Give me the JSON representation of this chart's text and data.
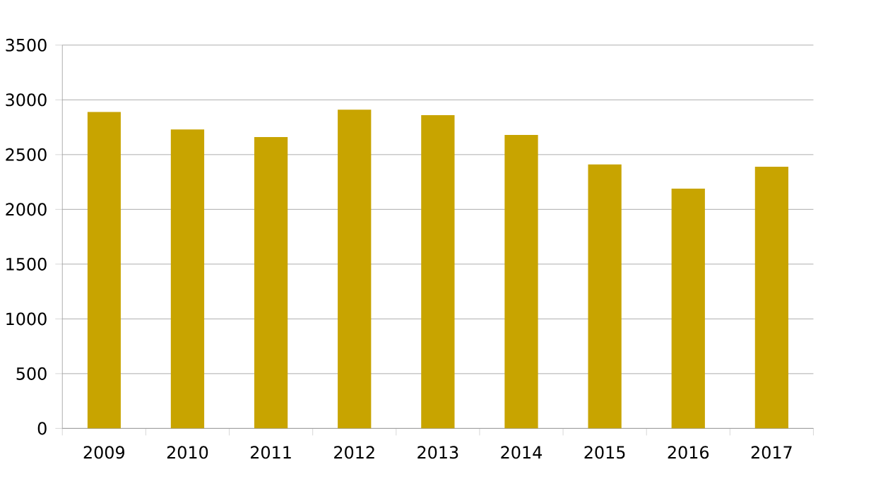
{
  "chart_data": {
    "type": "bar",
    "categories": [
      "2009",
      "2010",
      "2011",
      "2012",
      "2013",
      "2014",
      "2015",
      "2016",
      "2017"
    ],
    "values": [
      2890,
      2730,
      2660,
      2910,
      2860,
      2680,
      2410,
      2190,
      2390
    ],
    "color": "#c8a400",
    "ylim": [
      0,
      3500
    ],
    "yticks": [
      0,
      500,
      1000,
      1500,
      2000,
      2500,
      3000,
      3500
    ],
    "grid": "y"
  }
}
